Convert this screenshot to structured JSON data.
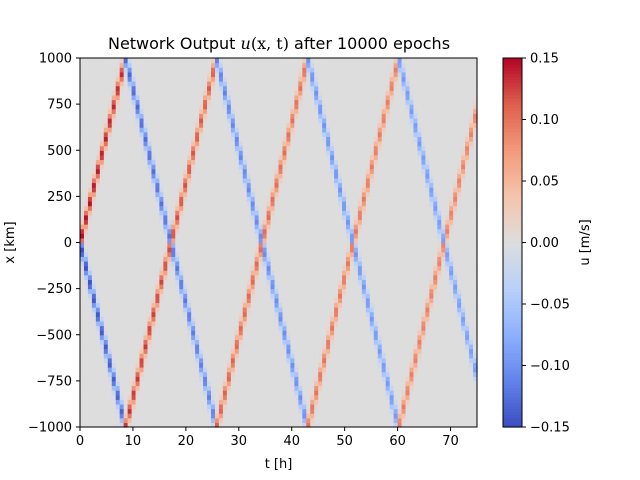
{
  "chart_data": {
    "type": "heatmap",
    "title": "Network Output u(x, t) after 10000 epochs",
    "title_parts": {
      "prefix": "Network Output ",
      "var": "u",
      "args": "(x, t)",
      "suffix": " after 10000 epochs"
    },
    "xlabel": "t [h]",
    "ylabel": "x [km]",
    "colorbar_label": "u [m/s]",
    "xlim": [
      0,
      75
    ],
    "ylim": [
      -1000,
      1000
    ],
    "clim": [
      -0.15,
      0.15
    ],
    "colormap": "coolwarm",
    "x_ticks": [
      0,
      10,
      20,
      30,
      40,
      50,
      60,
      70
    ],
    "y_ticks": [
      -1000,
      -750,
      -500,
      -250,
      0,
      250,
      500,
      750,
      1000
    ],
    "colorbar_ticks": [
      -0.15,
      -0.1,
      -0.05,
      0.0,
      0.05,
      0.1,
      0.15
    ],
    "x_tick_labels": [
      "0",
      "10",
      "20",
      "30",
      "40",
      "50",
      "60",
      "70"
    ],
    "y_tick_labels": [
      "−1000",
      "−750",
      "−500",
      "−250",
      "0",
      "250",
      "500",
      "750",
      "1000"
    ],
    "colorbar_tick_labels": [
      "−0.15",
      "−0.10",
      "−0.05",
      "0.00",
      "0.05",
      "0.10",
      "0.15"
    ],
    "grid": false,
    "wave": {
      "description_values": "Two counter-propagating pulses reflecting at x = ±1000 km",
      "speed_km_per_h": 116.3,
      "width_km": 50,
      "upper_start": [
        0,
        0
      ],
      "lower_start": [
        0,
        0
      ],
      "amplitude_start": 0.15,
      "amplitude_end": 0.085,
      "decay_time_h": 30
    }
  }
}
